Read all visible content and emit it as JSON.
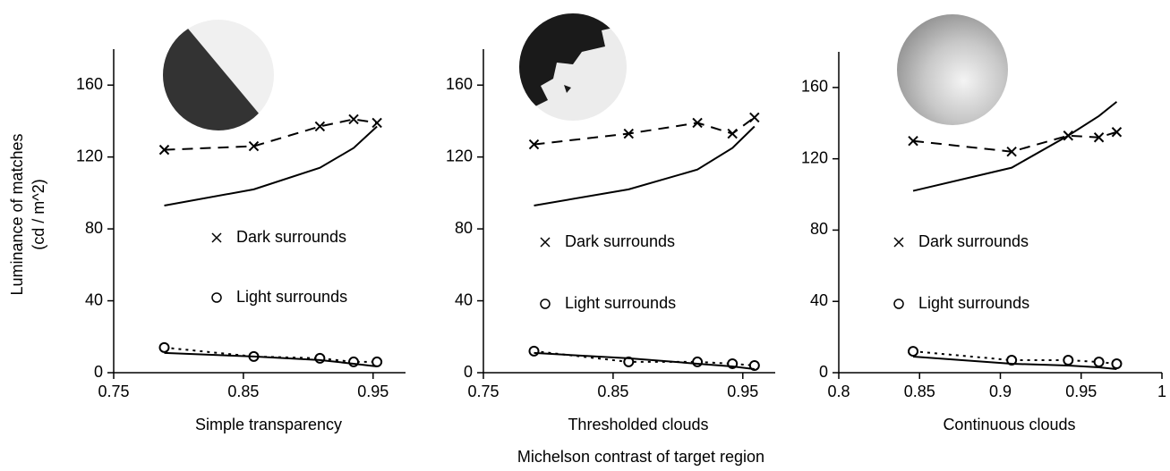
{
  "figure": {
    "ylabel": [
      "Luminance of matches",
      "(cd / m^2)"
    ],
    "xlabel": "Michelson contrast of target region"
  },
  "chart_data": [
    {
      "type": "line",
      "xlabel": "Simple transparency",
      "x": [
        0.789,
        0.858,
        0.909,
        0.935,
        0.953
      ],
      "xlim": [
        0.75,
        0.975
      ],
      "xticks": [
        0.75,
        0.85,
        0.95
      ],
      "ylim": [
        0,
        180
      ],
      "yticks": [
        0,
        40,
        80,
        120,
        160
      ],
      "series": [
        {
          "name": "Dark surrounds",
          "color": "#000000",
          "dash": "dashed",
          "marker": "x",
          "values": [
            124,
            126,
            137,
            141,
            139
          ]
        },
        {
          "color": "#000000",
          "dash": "solid",
          "values": [
            93,
            102,
            114,
            125,
            137
          ]
        },
        {
          "name": "Light surrounds",
          "color": "#000000",
          "dash": "dotted",
          "marker": "o",
          "values": [
            14,
            9,
            8,
            6,
            6
          ]
        },
        {
          "color": "#000000",
          "dash": "solid",
          "values": [
            11,
            9,
            7,
            5,
            3.5
          ]
        }
      ]
    },
    {
      "type": "line",
      "xlabel": "Thresholded clouds",
      "x": [
        0.789,
        0.862,
        0.915,
        0.942,
        0.959
      ],
      "xlim": [
        0.75,
        0.975
      ],
      "xticks": [
        0.75,
        0.85,
        0.95
      ],
      "ylim": [
        0,
        180
      ],
      "yticks": [
        0,
        40,
        80,
        120,
        160
      ],
      "series": [
        {
          "name": "Dark surrounds",
          "color": "#000000",
          "dash": "dashed",
          "marker": "x",
          "values": [
            127,
            133,
            139,
            133,
            142
          ]
        },
        {
          "color": "#000000",
          "dash": "solid",
          "values": [
            93,
            102,
            113,
            125,
            137
          ]
        },
        {
          "name": "Light surrounds",
          "color": "#000000",
          "dash": "dotted",
          "marker": "o",
          "values": [
            12,
            6,
            6,
            5,
            4
          ]
        },
        {
          "color": "#000000",
          "dash": "solid",
          "values": [
            11,
            8,
            5,
            3.5,
            2
          ]
        }
      ]
    },
    {
      "type": "line",
      "xlabel": "Continuous clouds",
      "x": [
        0.846,
        0.907,
        0.942,
        0.961,
        0.972
      ],
      "xlim": [
        0.8,
        1
      ],
      "xticks": [
        0.8,
        0.85,
        0.9,
        0.95,
        1
      ],
      "ylim": [
        0,
        180
      ],
      "yticks": [
        0,
        40,
        80,
        120,
        160
      ],
      "series": [
        {
          "name": "Dark surrounds",
          "color": "#000000",
          "dash": "dashed",
          "marker": "x",
          "values": [
            130,
            124,
            133,
            132,
            135
          ]
        },
        {
          "color": "#000000",
          "dash": "solid",
          "values": [
            102,
            115,
            133,
            144,
            152
          ]
        },
        {
          "name": "Light surrounds",
          "color": "#000000",
          "dash": "dotted",
          "marker": "o",
          "values": [
            12,
            7,
            7,
            6,
            5
          ]
        },
        {
          "color": "#000000",
          "dash": "solid",
          "values": [
            9,
            5,
            4,
            3,
            2
          ]
        }
      ]
    }
  ]
}
